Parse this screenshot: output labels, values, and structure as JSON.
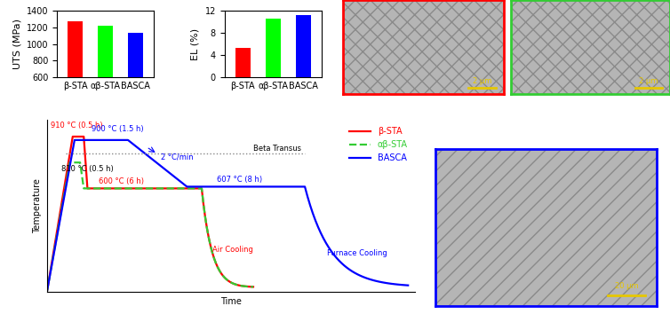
{
  "chart_data": [
    {
      "type": "bar",
      "y_label": "UTS (MPa)",
      "categories": [
        "β-STA",
        "αβ-STA",
        "BASCA"
      ],
      "values": [
        1275,
        1225,
        1130
      ],
      "colors": [
        "#ff0000",
        "#00ff00",
        "#0000ff"
      ],
      "ylim": [
        600,
        1400
      ],
      "yticks": [
        600,
        800,
        1000,
        1200,
        1400
      ]
    },
    {
      "type": "bar",
      "y_label": "EL (%)",
      "categories": [
        "β-STA",
        "αβ-STA",
        "BASCA"
      ],
      "values": [
        5.3,
        10.6,
        11.2
      ],
      "colors": [
        "#ff0000",
        "#00ff00",
        "#0000ff"
      ],
      "ylim": [
        0,
        12
      ],
      "yticks": [
        0,
        4,
        8,
        12
      ]
    }
  ],
  "heat_treatment": {
    "type": "schematic",
    "x_label": "Time",
    "y_label": "Temperature",
    "reference_line": "Beta Transus",
    "legend": "upper right",
    "series": [
      {
        "name": "β-STA",
        "color": "#ff0000",
        "line_style": "solid"
      },
      {
        "name": "αβ-STA",
        "color": "#33cc33",
        "line_style": "dashed"
      },
      {
        "name": "BASCA",
        "color": "#0000ff",
        "line_style": "solid"
      }
    ],
    "annotations": [
      {
        "text": "910 °C (0.5 h)",
        "color": "#ff0000"
      },
      {
        "text": "900 °C (1.5 h)",
        "color": "#0000ff"
      },
      {
        "text": "810 °C (0.5 h)",
        "color": "#000000"
      },
      {
        "text": "600 °C (6 h)",
        "color": "#ff0000"
      },
      {
        "text": "2 °C/min",
        "color": "#0000ff"
      },
      {
        "text": "607 °C (8 h)",
        "color": "#0000ff"
      },
      {
        "text": "Air Cooling",
        "color": "#ff0000"
      },
      {
        "text": "Furnace Cooling",
        "color": "#0000ff"
      }
    ]
  },
  "micrographs": [
    {
      "frame_color": "#ff0000",
      "scale_bar": "2 µm"
    },
    {
      "frame_color": "#33cc33",
      "scale_bar": "2 µm"
    },
    {
      "frame_color": "#0000ff",
      "scale_bar": "20 µm"
    }
  ]
}
